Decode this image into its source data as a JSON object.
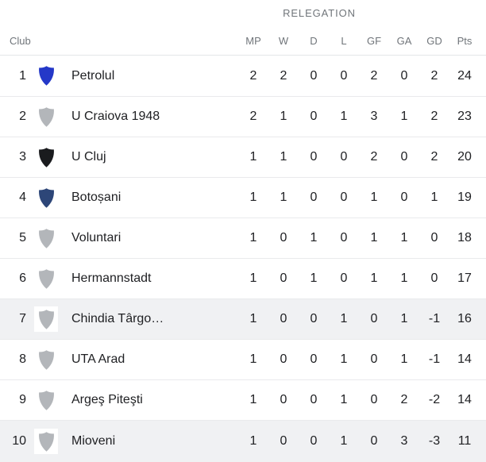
{
  "header": {
    "title": "RELEGATION"
  },
  "columns": {
    "club": "Club",
    "stats": [
      "MP",
      "W",
      "D",
      "L",
      "GF",
      "GA",
      "GD",
      "Pts"
    ]
  },
  "colors": {
    "text": "#202124",
    "muted": "#70757a",
    "divider": "#e9eaec",
    "row_highlight": "#f0f1f3",
    "shield_gray": "#b3b6ba",
    "shield_blue": "#2438c8",
    "shield_black": "#1a1b1e",
    "shield_navy": "#2d4678"
  },
  "icons": {
    "team_badge": "shield-icon"
  },
  "table": {
    "rows": [
      {
        "rank": "1",
        "team": "Petrolul",
        "shield_color": "#2438c8",
        "highlighted": false,
        "stats": [
          "2",
          "2",
          "0",
          "0",
          "2",
          "0",
          "2",
          "24"
        ]
      },
      {
        "rank": "2",
        "team": "U Craiova 1948",
        "shield_color": "#b3b6ba",
        "highlighted": false,
        "stats": [
          "2",
          "1",
          "0",
          "1",
          "3",
          "1",
          "2",
          "23"
        ]
      },
      {
        "rank": "3",
        "team": "U Cluj",
        "shield_color": "#1a1b1e",
        "highlighted": false,
        "stats": [
          "1",
          "1",
          "0",
          "0",
          "2",
          "0",
          "2",
          "20"
        ]
      },
      {
        "rank": "4",
        "team": "Botoșani",
        "shield_color": "#2d4678",
        "highlighted": false,
        "stats": [
          "1",
          "1",
          "0",
          "0",
          "1",
          "0",
          "1",
          "19"
        ]
      },
      {
        "rank": "5",
        "team": "Voluntari",
        "shield_color": "#b3b6ba",
        "highlighted": false,
        "stats": [
          "1",
          "0",
          "1",
          "0",
          "1",
          "1",
          "0",
          "18"
        ]
      },
      {
        "rank": "6",
        "team": "Hermannstadt",
        "shield_color": "#b3b6ba",
        "highlighted": false,
        "stats": [
          "1",
          "0",
          "1",
          "0",
          "1",
          "1",
          "0",
          "17"
        ]
      },
      {
        "rank": "7",
        "team": "Chindia Târgo…",
        "shield_color": "#b3b6ba",
        "highlighted": true,
        "stats": [
          "1",
          "0",
          "0",
          "1",
          "0",
          "1",
          "-1",
          "16"
        ]
      },
      {
        "rank": "8",
        "team": "UTA Arad",
        "shield_color": "#b3b6ba",
        "highlighted": false,
        "stats": [
          "1",
          "0",
          "0",
          "1",
          "0",
          "1",
          "-1",
          "14"
        ]
      },
      {
        "rank": "9",
        "team": "Argeş Piteşti",
        "shield_color": "#b3b6ba",
        "highlighted": false,
        "stats": [
          "1",
          "0",
          "0",
          "1",
          "0",
          "2",
          "-2",
          "14"
        ]
      },
      {
        "rank": "10",
        "team": "Mioveni",
        "shield_color": "#b3b6ba",
        "highlighted": true,
        "stats": [
          "1",
          "0",
          "0",
          "1",
          "0",
          "3",
          "-3",
          "11"
        ]
      }
    ]
  }
}
